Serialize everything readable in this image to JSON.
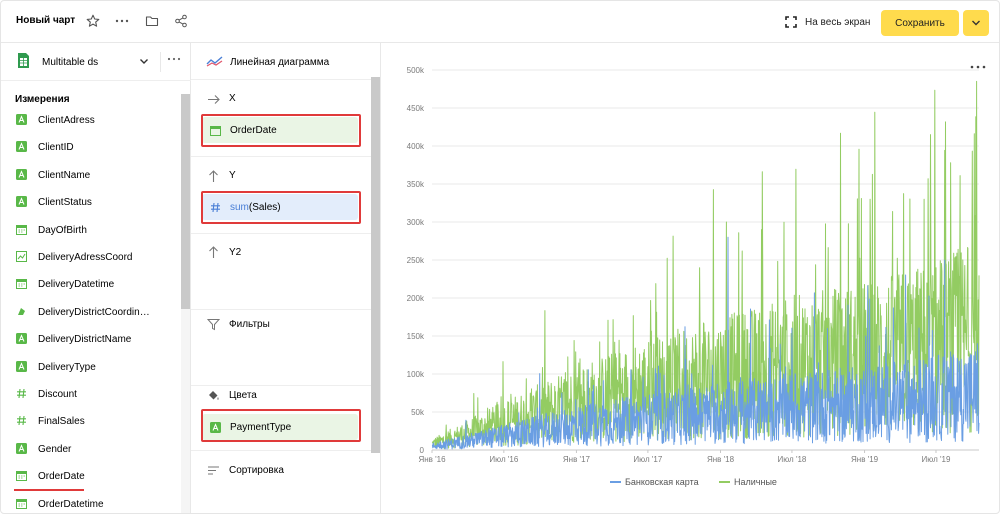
{
  "header": {
    "title": "Новый чарт",
    "fullscreen_label": "На весь экран",
    "save_label": "Сохранить"
  },
  "dataset": {
    "name": "Multitable ds"
  },
  "dimensions_header": "Измерения",
  "fields": [
    {
      "label": "ClientAdress",
      "type": "string"
    },
    {
      "label": "ClientID",
      "type": "string"
    },
    {
      "label": "ClientName",
      "type": "string"
    },
    {
      "label": "ClientStatus",
      "type": "string"
    },
    {
      "label": "DayOfBirth",
      "type": "date"
    },
    {
      "label": "DeliveryAdressCoord",
      "type": "geo"
    },
    {
      "label": "DeliveryDatetime",
      "type": "date"
    },
    {
      "label": "DeliveryDistrictCoordin…",
      "type": "geopolygon"
    },
    {
      "label": "DeliveryDistrictName",
      "type": "string"
    },
    {
      "label": "DeliveryType",
      "type": "string"
    },
    {
      "label": "Discount",
      "type": "number"
    },
    {
      "label": "FinalSales",
      "type": "number"
    },
    {
      "label": "Gender",
      "type": "string"
    },
    {
      "label": "OrderDate",
      "type": "date"
    },
    {
      "label": "OrderDatetime",
      "type": "date"
    }
  ],
  "visualization": {
    "label": "Линейная диаграмма"
  },
  "sections": {
    "x": {
      "label": "X",
      "item": "OrderDate"
    },
    "y": {
      "label": "Y",
      "item_func": "sum",
      "item_paren_open": "(",
      "item_field": "Sales",
      "item_paren_close": ")"
    },
    "y2": {
      "label": "Y2"
    },
    "filters": {
      "label": "Фильтры"
    },
    "colors": {
      "label": "Цвета",
      "item": "PaymentType"
    },
    "sort": {
      "label": "Сортировка"
    }
  },
  "colors": {
    "accent": "#ffdb4d",
    "highlight_red": "#e03a3a",
    "series_card": "#6a9ee3",
    "series_cash": "#93cc62",
    "field_green": "#59b848",
    "field_blue": "#4a7fd6"
  },
  "chart_data": {
    "type": "line",
    "x_tick_labels": [
      "Янв '16",
      "Июл '16",
      "Янв '17",
      "Июл '17",
      "Янв '18",
      "Июл '18",
      "Янв '19",
      "Июл '19"
    ],
    "y_tick_labels": [
      "0",
      "50k",
      "100k",
      "150k",
      "200k",
      "250k",
      "300k",
      "350k",
      "400k",
      "450k",
      "500k"
    ],
    "ylim": [
      0,
      500000
    ],
    "xlim": [
      "2016-01-01",
      "2019-10-18"
    ],
    "grid": true,
    "legend_position": "bottom-center",
    "series": [
      {
        "name": "Банковская карта",
        "color": "#6a9ee3",
        "trend_points": [
          {
            "x": "2016-01-01",
            "y": 5000
          },
          {
            "x": "2016-07-01",
            "y": 18000
          },
          {
            "x": "2017-01-01",
            "y": 32000
          },
          {
            "x": "2017-07-01",
            "y": 40000
          },
          {
            "x": "2018-01-01",
            "y": 48000
          },
          {
            "x": "2018-07-01",
            "y": 55000
          },
          {
            "x": "2019-01-01",
            "y": 60000
          },
          {
            "x": "2019-07-01",
            "y": 68000
          },
          {
            "x": "2019-10-18",
            "y": 75000
          }
        ],
        "peaks": [
          {
            "x": "2018-01-20",
            "y": 280000
          },
          {
            "x": "2019-10-14",
            "y": 140000
          }
        ]
      },
      {
        "name": "Наличные",
        "color": "#93cc62",
        "trend_points": [
          {
            "x": "2016-01-01",
            "y": 8000
          },
          {
            "x": "2016-07-01",
            "y": 35000
          },
          {
            "x": "2017-01-01",
            "y": 60000
          },
          {
            "x": "2017-07-01",
            "y": 80000
          },
          {
            "x": "2018-01-01",
            "y": 95000
          },
          {
            "x": "2018-07-01",
            "y": 110000
          },
          {
            "x": "2019-01-01",
            "y": 120000
          },
          {
            "x": "2019-07-01",
            "y": 135000
          },
          {
            "x": "2019-10-18",
            "y": 150000
          }
        ],
        "peaks": [
          {
            "x": "2018-04-15",
            "y": 290000
          },
          {
            "x": "2019-01-15",
            "y": 330000
          },
          {
            "x": "2019-06-01",
            "y": 330000
          },
          {
            "x": "2019-10-12",
            "y": 485000
          }
        ]
      }
    ]
  }
}
